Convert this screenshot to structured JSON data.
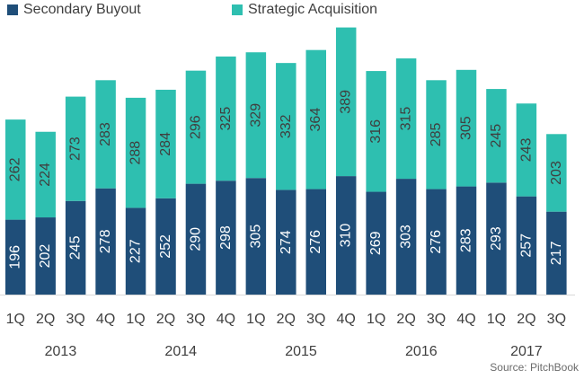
{
  "chart_data": {
    "type": "bar",
    "stacked": true,
    "title": "",
    "xlabel": "",
    "ylabel": "",
    "ylim": [
      0,
      700
    ],
    "categories": [
      "1Q",
      "2Q",
      "3Q",
      "4Q",
      "1Q",
      "2Q",
      "3Q",
      "4Q",
      "1Q",
      "2Q",
      "3Q",
      "4Q",
      "1Q",
      "2Q",
      "3Q",
      "4Q",
      "1Q",
      "2Q",
      "3Q"
    ],
    "years": [
      {
        "label": "2013",
        "quarters": 4
      },
      {
        "label": "2014",
        "quarters": 4
      },
      {
        "label": "2015",
        "quarters": 4
      },
      {
        "label": "2016",
        "quarters": 4
      },
      {
        "label": "2017",
        "quarters": 3
      }
    ],
    "series": [
      {
        "name": "Secondary Buyout",
        "color": "#1f4e79",
        "values": [
          196,
          202,
          245,
          278,
          227,
          252,
          290,
          298,
          305,
          274,
          276,
          310,
          269,
          303,
          276,
          283,
          293,
          257,
          217
        ]
      },
      {
        "name": "Strategic Acquisition",
        "color": "#2ebfb0",
        "values": [
          262,
          224,
          273,
          283,
          288,
          284,
          296,
          325,
          329,
          332,
          364,
          389,
          316,
          315,
          285,
          305,
          245,
          243,
          203
        ]
      }
    ],
    "legend_position": "top-left",
    "grid": false
  },
  "source": "Source: PitchBook"
}
